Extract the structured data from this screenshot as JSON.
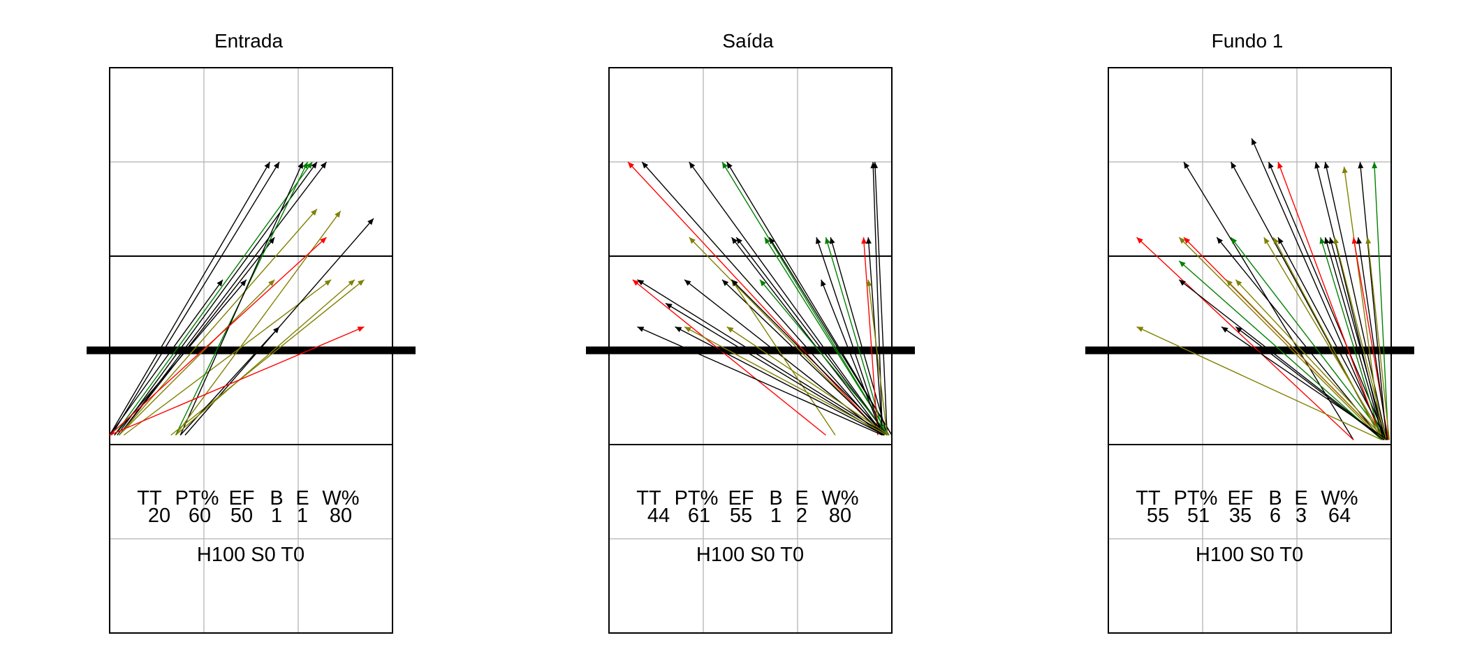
{
  "colors": {
    "black": "#000000",
    "red": "#ff0000",
    "green": "#008000",
    "olive": "#808000",
    "grid": "#bebebe"
  },
  "chart_data": [
    {
      "type": "scatter",
      "title": "Entrada",
      "stats": {
        "headers": [
          "TT",
          "PT%",
          "EF",
          "B",
          "E",
          "W%"
        ],
        "values": [
          "20",
          "60",
          "50",
          "1",
          "1",
          "80"
        ]
      },
      "footer": "H100 S0 T0",
      "arrows": [
        {
          "x1": 0.0,
          "y1": 2.1,
          "x2": 1.7,
          "y2": 5.0,
          "color": "black"
        },
        {
          "x1": 0.02,
          "y1": 2.1,
          "x2": 1.8,
          "y2": 5.0,
          "color": "black"
        },
        {
          "x1": 0.05,
          "y1": 2.1,
          "x2": 2.15,
          "y2": 5.0,
          "color": "green"
        },
        {
          "x1": 0.08,
          "y1": 2.1,
          "x2": 2.2,
          "y2": 5.0,
          "color": "black"
        },
        {
          "x1": 0.1,
          "y1": 2.1,
          "x2": 2.3,
          "y2": 5.0,
          "color": "black"
        },
        {
          "x1": 0.0,
          "y1": 2.1,
          "x2": 1.2,
          "y2": 3.75,
          "color": "black"
        },
        {
          "x1": 0.05,
          "y1": 2.1,
          "x2": 1.45,
          "y2": 3.75,
          "color": "black"
        },
        {
          "x1": 0.1,
          "y1": 2.1,
          "x2": 1.75,
          "y2": 4.2,
          "color": "black"
        },
        {
          "x1": 0.1,
          "y1": 2.1,
          "x2": 1.75,
          "y2": 3.75,
          "color": "olive"
        },
        {
          "x1": 0.15,
          "y1": 2.1,
          "x2": 2.35,
          "y2": 3.75,
          "color": "olive"
        },
        {
          "x1": 0.1,
          "y1": 2.1,
          "x2": 2.2,
          "y2": 4.5,
          "color": "olive"
        },
        {
          "x1": 0.7,
          "y1": 2.1,
          "x2": 2.1,
          "y2": 5.0,
          "color": "green"
        },
        {
          "x1": 0.75,
          "y1": 2.1,
          "x2": 2.05,
          "y2": 5.0,
          "color": "black"
        },
        {
          "x1": 0.7,
          "y1": 2.1,
          "x2": 2.45,
          "y2": 4.48,
          "color": "olive"
        },
        {
          "x1": 0.8,
          "y1": 2.1,
          "x2": 2.8,
          "y2": 4.4,
          "color": "black"
        },
        {
          "x1": 0.0,
          "y1": 2.1,
          "x2": 2.3,
          "y2": 4.2,
          "color": "red"
        },
        {
          "x1": 0.65,
          "y1": 2.1,
          "x2": 2.7,
          "y2": 3.75,
          "color": "olive"
        },
        {
          "x1": 0.75,
          "y1": 2.1,
          "x2": 1.8,
          "y2": 3.25,
          "color": "black"
        },
        {
          "x1": 0.7,
          "y1": 2.1,
          "x2": 2.6,
          "y2": 3.75,
          "color": "olive"
        },
        {
          "x1": 0.0,
          "y1": 2.1,
          "x2": 2.7,
          "y2": 3.25,
          "color": "red"
        }
      ]
    },
    {
      "type": "scatter",
      "title": "Saída",
      "stats": {
        "headers": [
          "TT",
          "PT%",
          "EF",
          "B",
          "E",
          "W%"
        ],
        "values": [
          "44",
          "61",
          "55",
          "1",
          "2",
          "80"
        ]
      },
      "footer": "H100 S0 T0",
      "arrows": [
        {
          "x1": 2.9,
          "y1": 2.1,
          "x2": 0.2,
          "y2": 5.0,
          "color": "red"
        },
        {
          "x1": 2.92,
          "y1": 2.1,
          "x2": 0.35,
          "y2": 5.0,
          "color": "black"
        },
        {
          "x1": 2.95,
          "y1": 2.1,
          "x2": 0.85,
          "y2": 5.0,
          "color": "black"
        },
        {
          "x1": 2.97,
          "y1": 2.1,
          "x2": 1.2,
          "y2": 5.0,
          "color": "green"
        },
        {
          "x1": 3.0,
          "y1": 2.1,
          "x2": 1.25,
          "y2": 5.0,
          "color": "black"
        },
        {
          "x1": 2.9,
          "y1": 2.1,
          "x2": 2.8,
          "y2": 5.0,
          "color": "black"
        },
        {
          "x1": 2.95,
          "y1": 2.1,
          "x2": 2.82,
          "y2": 5.0,
          "color": "black"
        },
        {
          "x1": 2.9,
          "y1": 2.1,
          "x2": 0.85,
          "y2": 4.2,
          "color": "olive"
        },
        {
          "x1": 2.92,
          "y1": 2.1,
          "x2": 1.3,
          "y2": 4.2,
          "color": "black"
        },
        {
          "x1": 2.95,
          "y1": 2.1,
          "x2": 1.35,
          "y2": 4.2,
          "color": "black"
        },
        {
          "x1": 2.97,
          "y1": 2.1,
          "x2": 1.65,
          "y2": 4.2,
          "color": "green"
        },
        {
          "x1": 3.0,
          "y1": 2.1,
          "x2": 1.7,
          "y2": 4.2,
          "color": "black"
        },
        {
          "x1": 2.9,
          "y1": 2.1,
          "x2": 2.2,
          "y2": 4.2,
          "color": "black"
        },
        {
          "x1": 2.92,
          "y1": 2.1,
          "x2": 2.3,
          "y2": 4.2,
          "color": "green"
        },
        {
          "x1": 2.95,
          "y1": 2.1,
          "x2": 2.35,
          "y2": 4.2,
          "color": "black"
        },
        {
          "x1": 2.85,
          "y1": 2.1,
          "x2": 2.7,
          "y2": 4.2,
          "color": "red"
        },
        {
          "x1": 2.9,
          "y1": 2.1,
          "x2": 2.75,
          "y2": 4.2,
          "color": "black"
        },
        {
          "x1": 2.3,
          "y1": 2.1,
          "x2": 0.25,
          "y2": 3.75,
          "color": "red"
        },
        {
          "x1": 2.95,
          "y1": 2.1,
          "x2": 0.3,
          "y2": 3.75,
          "color": "black"
        },
        {
          "x1": 2.9,
          "y1": 2.1,
          "x2": 0.8,
          "y2": 3.75,
          "color": "black"
        },
        {
          "x1": 2.92,
          "y1": 2.1,
          "x2": 1.2,
          "y2": 3.75,
          "color": "black"
        },
        {
          "x1": 2.4,
          "y1": 2.1,
          "x2": 1.3,
          "y2": 3.75,
          "color": "olive"
        },
        {
          "x1": 2.95,
          "y1": 2.1,
          "x2": 1.3,
          "y2": 3.75,
          "color": "black"
        },
        {
          "x1": 2.97,
          "y1": 2.1,
          "x2": 1.6,
          "y2": 3.75,
          "color": "green"
        },
        {
          "x1": 2.9,
          "y1": 2.1,
          "x2": 2.25,
          "y2": 3.75,
          "color": "black"
        },
        {
          "x1": 2.95,
          "y1": 2.1,
          "x2": 2.75,
          "y2": 3.75,
          "color": "olive"
        },
        {
          "x1": 2.92,
          "y1": 2.1,
          "x2": 0.6,
          "y2": 3.5,
          "color": "black"
        },
        {
          "x1": 2.9,
          "y1": 2.1,
          "x2": 0.3,
          "y2": 3.25,
          "color": "black"
        },
        {
          "x1": 2.95,
          "y1": 2.1,
          "x2": 0.8,
          "y2": 3.25,
          "color": "olive"
        },
        {
          "x1": 2.92,
          "y1": 2.1,
          "x2": 0.7,
          "y2": 3.25,
          "color": "black"
        },
        {
          "x1": 2.97,
          "y1": 2.1,
          "x2": 1.25,
          "y2": 3.25,
          "color": "olive"
        }
      ]
    },
    {
      "type": "scatter",
      "title": "Fundo 1",
      "stats": {
        "headers": [
          "TT",
          "PT%",
          "EF",
          "B",
          "E",
          "W%"
        ],
        "values": [
          "55",
          "51",
          "35",
          "6",
          "3",
          "64"
        ]
      },
      "footer": "H100 S0 T0",
      "arrows": [
        {
          "x1": 2.6,
          "y1": 2.05,
          "x2": 0.8,
          "y2": 5.0,
          "color": "black"
        },
        {
          "x1": 2.9,
          "y1": 2.05,
          "x2": 1.3,
          "y2": 5.0,
          "color": "black"
        },
        {
          "x1": 2.92,
          "y1": 2.05,
          "x2": 1.52,
          "y2": 5.25,
          "color": "black"
        },
        {
          "x1": 2.95,
          "y1": 2.05,
          "x2": 1.7,
          "y2": 5.0,
          "color": "black"
        },
        {
          "x1": 2.9,
          "y1": 2.05,
          "x2": 1.8,
          "y2": 5.0,
          "color": "red"
        },
        {
          "x1": 2.92,
          "y1": 2.05,
          "x2": 2.2,
          "y2": 5.0,
          "color": "black"
        },
        {
          "x1": 2.95,
          "y1": 2.05,
          "x2": 2.3,
          "y2": 5.0,
          "color": "black"
        },
        {
          "x1": 2.9,
          "y1": 2.05,
          "x2": 2.5,
          "y2": 4.95,
          "color": "olive"
        },
        {
          "x1": 2.95,
          "y1": 2.05,
          "x2": 2.67,
          "y2": 5.0,
          "color": "black"
        },
        {
          "x1": 2.97,
          "y1": 2.05,
          "x2": 2.82,
          "y2": 5.0,
          "color": "green"
        },
        {
          "x1": 2.6,
          "y1": 2.05,
          "x2": 0.3,
          "y2": 4.2,
          "color": "red"
        },
        {
          "x1": 2.9,
          "y1": 2.05,
          "x2": 0.75,
          "y2": 4.2,
          "color": "olive"
        },
        {
          "x1": 2.92,
          "y1": 2.05,
          "x2": 0.8,
          "y2": 4.2,
          "color": "red"
        },
        {
          "x1": 2.9,
          "y1": 2.05,
          "x2": 1.15,
          "y2": 4.2,
          "color": "black"
        },
        {
          "x1": 2.95,
          "y1": 2.05,
          "x2": 1.3,
          "y2": 4.2,
          "color": "green"
        },
        {
          "x1": 2.93,
          "y1": 2.05,
          "x2": 1.65,
          "y2": 4.2,
          "color": "olive"
        },
        {
          "x1": 2.9,
          "y1": 2.05,
          "x2": 1.75,
          "y2": 4.2,
          "color": "olive"
        },
        {
          "x1": 2.95,
          "y1": 2.05,
          "x2": 1.8,
          "y2": 4.2,
          "color": "black"
        },
        {
          "x1": 2.9,
          "y1": 2.05,
          "x2": 2.25,
          "y2": 4.2,
          "color": "green"
        },
        {
          "x1": 2.92,
          "y1": 2.05,
          "x2": 2.3,
          "y2": 4.2,
          "color": "black"
        },
        {
          "x1": 2.94,
          "y1": 2.05,
          "x2": 2.35,
          "y2": 4.2,
          "color": "black"
        },
        {
          "x1": 2.95,
          "y1": 2.05,
          "x2": 2.4,
          "y2": 4.2,
          "color": "olive"
        },
        {
          "x1": 2.97,
          "y1": 2.05,
          "x2": 2.6,
          "y2": 4.2,
          "color": "red"
        },
        {
          "x1": 2.96,
          "y1": 2.05,
          "x2": 2.65,
          "y2": 4.2,
          "color": "black"
        },
        {
          "x1": 2.98,
          "y1": 2.05,
          "x2": 2.75,
          "y2": 4.2,
          "color": "olive"
        },
        {
          "x1": 2.93,
          "y1": 2.05,
          "x2": 0.75,
          "y2": 3.75,
          "color": "black"
        },
        {
          "x1": 2.9,
          "y1": 2.05,
          "x2": 0.75,
          "y2": 3.95,
          "color": "green"
        },
        {
          "x1": 2.92,
          "y1": 2.05,
          "x2": 1.25,
          "y2": 3.75,
          "color": "olive"
        },
        {
          "x1": 2.94,
          "y1": 2.05,
          "x2": 1.35,
          "y2": 3.75,
          "color": "olive"
        },
        {
          "x1": 2.96,
          "y1": 2.05,
          "x2": 1.2,
          "y2": 3.25,
          "color": "black"
        },
        {
          "x1": 2.92,
          "y1": 2.05,
          "x2": 1.35,
          "y2": 3.25,
          "color": "black"
        },
        {
          "x1": 2.9,
          "y1": 2.05,
          "x2": 0.3,
          "y2": 3.25,
          "color": "olive"
        }
      ]
    }
  ]
}
